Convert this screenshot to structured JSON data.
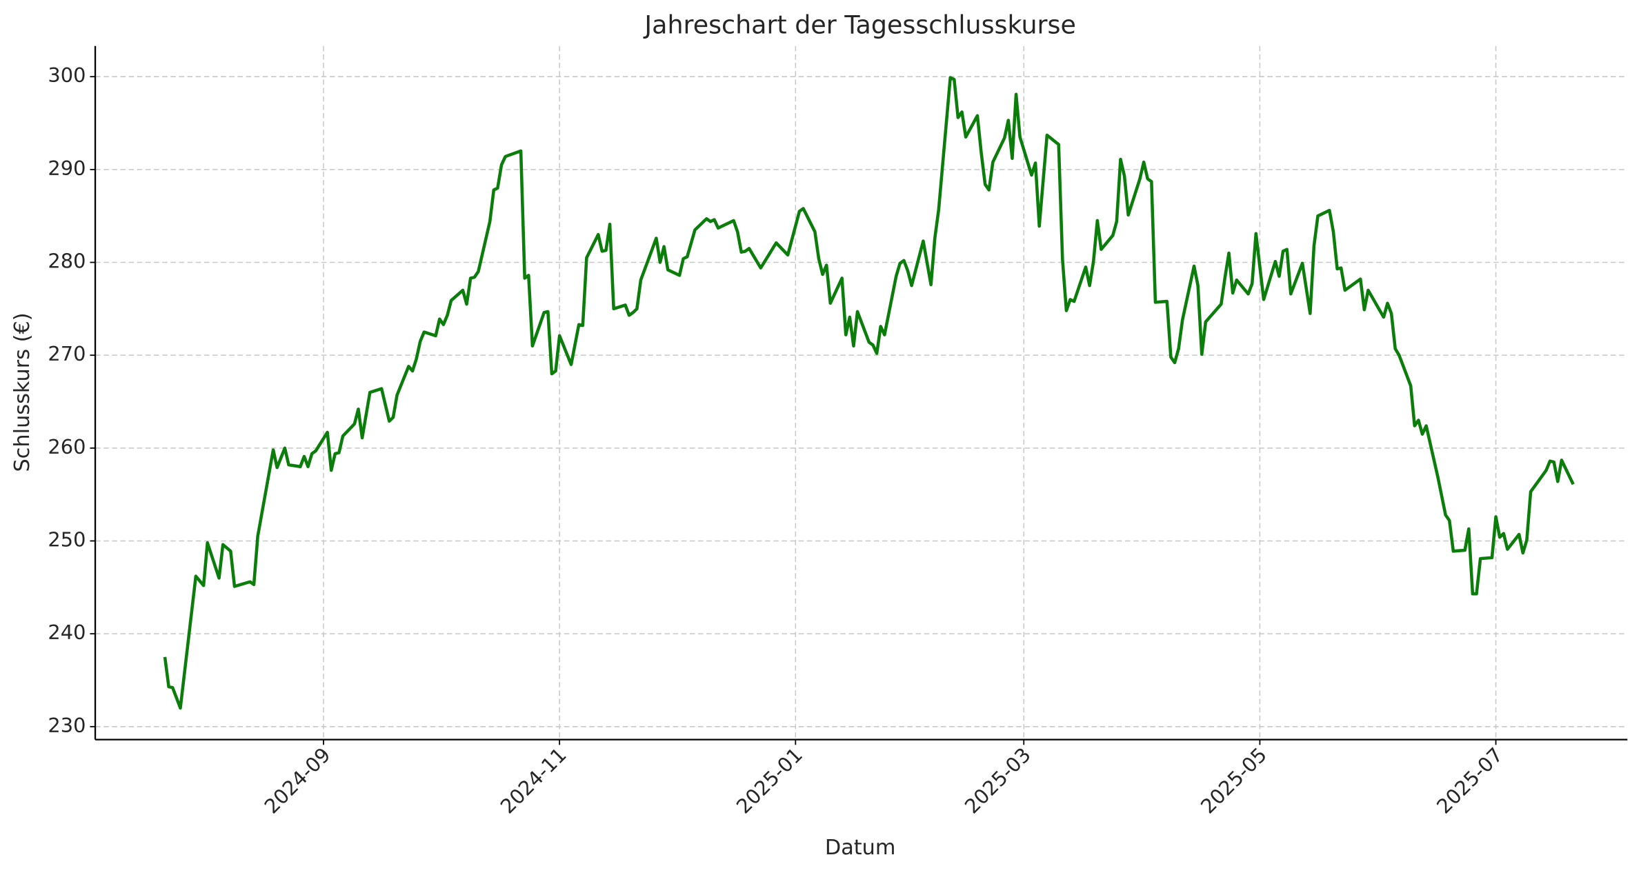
{
  "chart_data": {
    "type": "line",
    "title": "Jahreschart der Tagesschlusskurse",
    "xlabel": "Datum",
    "ylabel": "Schlusskurs (€)",
    "x": [
      "2024-07-22",
      "2024-07-23",
      "2024-07-24",
      "2024-07-26",
      "2024-07-30",
      "2024-08-01",
      "2024-08-02",
      "2024-08-05",
      "2024-08-06",
      "2024-08-08",
      "2024-08-09",
      "2024-08-13",
      "2024-08-14",
      "2024-08-15",
      "2024-08-19",
      "2024-08-20",
      "2024-08-22",
      "2024-08-23",
      "2024-08-26",
      "2024-08-27",
      "2024-08-28",
      "2024-08-29",
      "2024-08-30",
      "2024-09-02",
      "2024-09-03",
      "2024-09-04",
      "2024-09-05",
      "2024-09-06",
      "2024-09-09",
      "2024-09-10",
      "2024-09-11",
      "2024-09-13",
      "2024-09-16",
      "2024-09-18",
      "2024-09-19",
      "2024-09-20",
      "2024-09-23",
      "2024-09-24",
      "2024-09-25",
      "2024-09-26",
      "2024-09-27",
      "2024-09-30",
      "2024-10-01",
      "2024-10-02",
      "2024-10-03",
      "2024-10-04",
      "2024-10-07",
      "2024-10-08",
      "2024-10-09",
      "2024-10-10",
      "2024-10-11",
      "2024-10-14",
      "2024-10-15",
      "2024-10-16",
      "2024-10-17",
      "2024-10-18",
      "2024-10-22",
      "2024-10-23",
      "2024-10-24",
      "2024-10-25",
      "2024-10-28",
      "2024-10-29",
      "2024-10-30",
      "2024-10-31",
      "2024-11-01",
      "2024-11-04",
      "2024-11-06",
      "2024-11-07",
      "2024-11-08",
      "2024-11-11",
      "2024-11-12",
      "2024-11-13",
      "2024-11-14",
      "2024-11-15",
      "2024-11-18",
      "2024-11-19",
      "2024-11-20",
      "2024-11-21",
      "2024-11-22",
      "2024-11-26",
      "2024-11-27",
      "2024-11-28",
      "2024-11-29",
      "2024-12-02",
      "2024-12-03",
      "2024-12-04",
      "2024-12-06",
      "2024-12-09",
      "2024-12-10",
      "2024-12-11",
      "2024-12-12",
      "2024-12-16",
      "2024-12-17",
      "2024-12-18",
      "2024-12-19",
      "2024-12-20",
      "2024-12-23",
      "2024-12-27",
      "2024-12-30",
      "2025-01-02",
      "2025-01-03",
      "2025-01-06",
      "2025-01-07",
      "2025-01-08",
      "2025-01-09",
      "2025-01-10",
      "2025-01-13",
      "2025-01-14",
      "2025-01-15",
      "2025-01-16",
      "2025-01-17",
      "2025-01-20",
      "2025-01-21",
      "2025-01-22",
      "2025-01-23",
      "2025-01-24",
      "2025-01-27",
      "2025-01-28",
      "2025-01-29",
      "2025-01-30",
      "2025-01-31",
      "2025-02-03",
      "2025-02-05",
      "2025-02-06",
      "2025-02-07",
      "2025-02-10",
      "2025-02-11",
      "2025-02-12",
      "2025-02-13",
      "2025-02-14",
      "2025-02-17",
      "2025-02-18",
      "2025-02-19",
      "2025-02-20",
      "2025-02-21",
      "2025-02-24",
      "2025-02-25",
      "2025-02-26",
      "2025-02-27",
      "2025-02-28",
      "2025-03-03",
      "2025-03-04",
      "2025-03-05",
      "2025-03-07",
      "2025-03-10",
      "2025-03-11",
      "2025-03-12",
      "2025-03-13",
      "2025-03-14",
      "2025-03-17",
      "2025-03-18",
      "2025-03-19",
      "2025-03-20",
      "2025-03-21",
      "2025-03-24",
      "2025-03-25",
      "2025-03-26",
      "2025-03-27",
      "2025-03-28",
      "2025-03-31",
      "2025-04-01",
      "2025-04-02",
      "2025-04-03",
      "2025-04-04",
      "2025-04-07",
      "2025-04-08",
      "2025-04-09",
      "2025-04-10",
      "2025-04-11",
      "2025-04-14",
      "2025-04-15",
      "2025-04-16",
      "2025-04-17",
      "2025-04-21",
      "2025-04-22",
      "2025-04-23",
      "2025-04-24",
      "2025-04-25",
      "2025-04-28",
      "2025-04-29",
      "2025-04-30",
      "2025-05-02",
      "2025-05-05",
      "2025-05-06",
      "2025-05-07",
      "2025-05-08",
      "2025-05-09",
      "2025-05-12",
      "2025-05-14",
      "2025-05-15",
      "2025-05-16",
      "2025-05-19",
      "2025-05-20",
      "2025-05-21",
      "2025-05-22",
      "2025-05-23",
      "2025-05-27",
      "2025-05-28",
      "2025-05-29",
      "2025-06-02",
      "2025-06-03",
      "2025-06-04",
      "2025-06-05",
      "2025-06-06",
      "2025-06-09",
      "2025-06-10",
      "2025-06-11",
      "2025-06-12",
      "2025-06-13",
      "2025-06-16",
      "2025-06-18",
      "2025-06-19",
      "2025-06-20",
      "2025-06-23",
      "2025-06-24",
      "2025-06-25",
      "2025-06-26",
      "2025-06-27",
      "2025-06-30",
      "2025-07-01",
      "2025-07-02",
      "2025-07-03",
      "2025-07-04",
      "2025-07-07",
      "2025-07-08",
      "2025-07-09",
      "2025-07-10",
      "2025-07-14",
      "2025-07-15",
      "2025-07-16",
      "2025-07-17",
      "2025-07-18",
      "2025-07-21"
    ],
    "series": [
      {
        "name": "Schlusskurs",
        "color": "#0a7d0a",
        "values": [
          237.5,
          234.3,
          234.2,
          232.0,
          246.2,
          245.2,
          249.8,
          246.0,
          249.6,
          248.9,
          245.1,
          245.6,
          245.3,
          250.5,
          259.8,
          257.9,
          260.0,
          258.2,
          258.0,
          259.1,
          258.0,
          259.4,
          259.7,
          261.7,
          257.6,
          259.4,
          259.5,
          261.3,
          262.6,
          264.2,
          261.1,
          266.0,
          266.4,
          262.9,
          263.3,
          265.7,
          268.8,
          268.3,
          269.6,
          271.5,
          272.5,
          272.1,
          273.9,
          273.3,
          274.3,
          275.9,
          277.0,
          275.5,
          278.3,
          278.4,
          279.0,
          284.4,
          287.8,
          288.0,
          290.5,
          291.4,
          292.0,
          278.3,
          278.6,
          271.0,
          274.6,
          274.7,
          268.0,
          268.3,
          272.1,
          269.0,
          273.3,
          273.2,
          280.5,
          283.0,
          281.2,
          281.3,
          284.1,
          275.0,
          275.4,
          274.3,
          274.6,
          275.0,
          278.1,
          282.6,
          280.0,
          281.7,
          279.2,
          278.6,
          280.4,
          280.6,
          283.5,
          284.7,
          284.4,
          284.6,
          283.7,
          284.5,
          283.3,
          281.1,
          281.2,
          281.5,
          279.4,
          282.1,
          280.8,
          285.5,
          285.8,
          283.3,
          280.4,
          278.7,
          279.7,
          275.6,
          278.3,
          272.2,
          274.1,
          271.0,
          274.7,
          271.4,
          271.1,
          270.2,
          273.1,
          272.2,
          278.5,
          279.9,
          280.2,
          279.1,
          277.5,
          282.3,
          277.6,
          282.6,
          285.7,
          299.9,
          299.7,
          295.6,
          296.2,
          293.5,
          295.8,
          291.8,
          288.4,
          287.8,
          290.8,
          293.4,
          295.3,
          291.2,
          298.1,
          293.5,
          289.4,
          290.7,
          283.9,
          293.7,
          292.7,
          280.3,
          274.8,
          276.0,
          275.8,
          279.5,
          277.5,
          280.1,
          284.5,
          281.4,
          282.9,
          284.4,
          291.1,
          289.3,
          285.1,
          289.0,
          290.8,
          289.0,
          288.7,
          275.7,
          275.8,
          269.8,
          269.2,
          270.7,
          273.8,
          279.6,
          277.5,
          270.1,
          273.6,
          275.5,
          278.4,
          281.0,
          276.7,
          278.1,
          276.6,
          277.7,
          283.1,
          276.0,
          280.1,
          278.5,
          281.2,
          281.4,
          276.6,
          279.9,
          274.5,
          281.8,
          285.0,
          285.6,
          283.3,
          279.3,
          279.4,
          277.0,
          278.2,
          274.9,
          277.0,
          274.1,
          275.6,
          274.5,
          270.7,
          270.0,
          266.7,
          262.4,
          263.0,
          261.5,
          262.4,
          256.9,
          252.8,
          252.2,
          248.9,
          249.0,
          251.3,
          244.3,
          244.3,
          248.1,
          248.2,
          252.6,
          250.4,
          250.8,
          249.1,
          250.7,
          248.7,
          250.1,
          255.3,
          257.6,
          258.6,
          258.5,
          256.4,
          258.7,
          256.1
        ]
      }
    ],
    "xlim": [
      "2024-07-04",
      "2025-08-04"
    ],
    "xticks": [
      "2024-09",
      "2024-11",
      "2025-01",
      "2025-03",
      "2025-05",
      "2025-07"
    ],
    "ylim": [
      228.6,
      303.3
    ],
    "yticks": [
      230,
      240,
      250,
      260,
      270,
      280,
      290,
      300
    ],
    "grid": true
  }
}
